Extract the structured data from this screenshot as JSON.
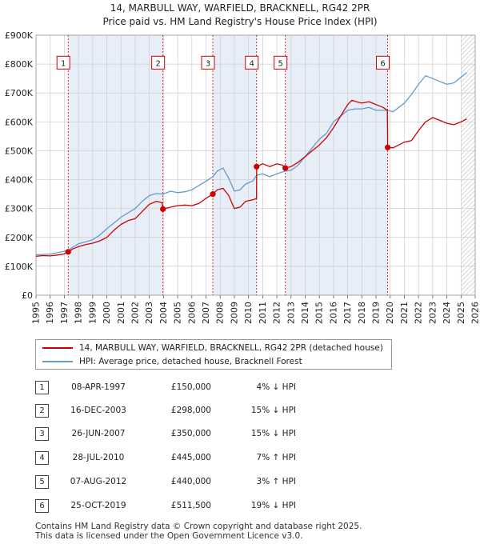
{
  "title": "14, MARBULL WAY, WARFIELD, BRACKNELL, RG42 2PR",
  "subtitle": "Price paid vs. HM Land Registry's House Price Index (HPI)",
  "colors": {
    "price_line": "#cc0000",
    "hpi_line": "#6699cc",
    "shade": "#e8eef8",
    "marker_line": "#cc0000",
    "grid": "#cccccc"
  },
  "chart_data": {
    "type": "line",
    "x_range": [
      1995,
      2026
    ],
    "ylim": [
      0,
      900000
    ],
    "y_ticks": [
      {
        "value": 0,
        "label": "£0"
      },
      {
        "value": 100000,
        "label": "£100K"
      },
      {
        "value": 200000,
        "label": "£200K"
      },
      {
        "value": 300000,
        "label": "£300K"
      },
      {
        "value": 400000,
        "label": "£400K"
      },
      {
        "value": 500000,
        "label": "£500K"
      },
      {
        "value": 600000,
        "label": "£600K"
      },
      {
        "value": 700000,
        "label": "£700K"
      },
      {
        "value": 800000,
        "label": "£800K"
      },
      {
        "value": 900000,
        "label": "£900K"
      }
    ],
    "x_ticks": [
      "1995",
      "1996",
      "1997",
      "1998",
      "1999",
      "2000",
      "2001",
      "2002",
      "2003",
      "2004",
      "2005",
      "2006",
      "2007",
      "2008",
      "2009",
      "2010",
      "2011",
      "2012",
      "2013",
      "2014",
      "2015",
      "2016",
      "2017",
      "2018",
      "2019",
      "2020",
      "2021",
      "2022",
      "2023",
      "2024",
      "2025",
      "2026"
    ],
    "shaded_ranges": [
      [
        1997.27,
        2003.96
      ],
      [
        2007.48,
        2010.57
      ],
      [
        2012.6,
        2019.82
      ]
    ],
    "hatch_from": 2025.0,
    "series": [
      {
        "name": "14, MARBULL WAY, WARFIELD, BRACKNELL, RG42 2PR (detached house)",
        "color": "#cc0000",
        "points": [
          [
            1995.0,
            135000
          ],
          [
            1995.5,
            137000
          ],
          [
            1996.0,
            136000
          ],
          [
            1996.5,
            139000
          ],
          [
            1997.0,
            143000
          ],
          [
            1997.27,
            150000
          ],
          [
            1997.6,
            160000
          ],
          [
            1998.0,
            168000
          ],
          [
            1998.5,
            175000
          ],
          [
            1999.0,
            180000
          ],
          [
            1999.5,
            188000
          ],
          [
            2000.0,
            200000
          ],
          [
            2000.5,
            225000
          ],
          [
            2001.0,
            245000
          ],
          [
            2001.5,
            258000
          ],
          [
            2002.0,
            265000
          ],
          [
            2002.5,
            290000
          ],
          [
            2003.0,
            315000
          ],
          [
            2003.5,
            325000
          ],
          [
            2003.9,
            320000
          ],
          [
            2003.96,
            298000
          ],
          [
            2004.5,
            305000
          ],
          [
            2005.0,
            310000
          ],
          [
            2005.5,
            312000
          ],
          [
            2006.0,
            310000
          ],
          [
            2006.5,
            318000
          ],
          [
            2007.0,
            335000
          ],
          [
            2007.48,
            350000
          ],
          [
            2007.8,
            365000
          ],
          [
            2008.2,
            370000
          ],
          [
            2008.6,
            345000
          ],
          [
            2009.0,
            300000
          ],
          [
            2009.4,
            305000
          ],
          [
            2009.8,
            325000
          ],
          [
            2010.3,
            330000
          ],
          [
            2010.57,
            335000
          ],
          [
            2010.58,
            445000
          ],
          [
            2011.0,
            455000
          ],
          [
            2011.5,
            445000
          ],
          [
            2012.0,
            455000
          ],
          [
            2012.4,
            450000
          ],
          [
            2012.6,
            440000
          ],
          [
            2013.0,
            445000
          ],
          [
            2013.5,
            460000
          ],
          [
            2014.0,
            480000
          ],
          [
            2014.5,
            500000
          ],
          [
            2015.0,
            520000
          ],
          [
            2015.5,
            545000
          ],
          [
            2016.0,
            580000
          ],
          [
            2016.5,
            620000
          ],
          [
            2017.0,
            660000
          ],
          [
            2017.3,
            675000
          ],
          [
            2017.6,
            670000
          ],
          [
            2018.0,
            665000
          ],
          [
            2018.5,
            670000
          ],
          [
            2019.0,
            660000
          ],
          [
            2019.5,
            650000
          ],
          [
            2019.8,
            640000
          ],
          [
            2019.82,
            511500
          ],
          [
            2020.2,
            510000
          ],
          [
            2020.6,
            520000
          ],
          [
            2021.0,
            530000
          ],
          [
            2021.5,
            535000
          ],
          [
            2022.0,
            570000
          ],
          [
            2022.5,
            600000
          ],
          [
            2023.0,
            615000
          ],
          [
            2023.5,
            605000
          ],
          [
            2024.0,
            595000
          ],
          [
            2024.5,
            590000
          ],
          [
            2025.0,
            600000
          ],
          [
            2025.4,
            610000
          ]
        ]
      },
      {
        "name": "HPI: Average price, detached house, Bracknell Forest",
        "color": "#6699cc",
        "points": [
          [
            1995.0,
            140000
          ],
          [
            1995.5,
            141000
          ],
          [
            1996.0,
            142000
          ],
          [
            1996.5,
            147000
          ],
          [
            1997.0,
            152000
          ],
          [
            1997.27,
            156000
          ],
          [
            1997.6,
            166000
          ],
          [
            1998.0,
            178000
          ],
          [
            1998.5,
            185000
          ],
          [
            1999.0,
            192000
          ],
          [
            1999.5,
            208000
          ],
          [
            2000.0,
            230000
          ],
          [
            2000.5,
            250000
          ],
          [
            2001.0,
            270000
          ],
          [
            2001.5,
            285000
          ],
          [
            2002.0,
            300000
          ],
          [
            2002.5,
            325000
          ],
          [
            2003.0,
            345000
          ],
          [
            2003.5,
            352000
          ],
          [
            2003.96,
            350000
          ],
          [
            2004.5,
            360000
          ],
          [
            2005.0,
            355000
          ],
          [
            2005.5,
            358000
          ],
          [
            2006.0,
            365000
          ],
          [
            2006.5,
            380000
          ],
          [
            2007.0,
            395000
          ],
          [
            2007.48,
            410000
          ],
          [
            2007.8,
            430000
          ],
          [
            2008.2,
            440000
          ],
          [
            2008.6,
            405000
          ],
          [
            2009.0,
            360000
          ],
          [
            2009.4,
            365000
          ],
          [
            2009.8,
            385000
          ],
          [
            2010.3,
            395000
          ],
          [
            2010.57,
            415000
          ],
          [
            2011.0,
            420000
          ],
          [
            2011.5,
            410000
          ],
          [
            2012.0,
            420000
          ],
          [
            2012.6,
            430000
          ],
          [
            2013.0,
            432000
          ],
          [
            2013.5,
            450000
          ],
          [
            2014.0,
            480000
          ],
          [
            2014.5,
            510000
          ],
          [
            2015.0,
            540000
          ],
          [
            2015.5,
            560000
          ],
          [
            2016.0,
            600000
          ],
          [
            2016.5,
            620000
          ],
          [
            2017.0,
            640000
          ],
          [
            2017.5,
            645000
          ],
          [
            2018.0,
            645000
          ],
          [
            2018.5,
            650000
          ],
          [
            2019.0,
            640000
          ],
          [
            2019.5,
            640000
          ],
          [
            2019.82,
            640000
          ],
          [
            2020.2,
            635000
          ],
          [
            2020.6,
            650000
          ],
          [
            2021.0,
            665000
          ],
          [
            2021.5,
            695000
          ],
          [
            2022.0,
            730000
          ],
          [
            2022.5,
            760000
          ],
          [
            2023.0,
            750000
          ],
          [
            2023.5,
            740000
          ],
          [
            2024.0,
            730000
          ],
          [
            2024.5,
            735000
          ],
          [
            2025.0,
            755000
          ],
          [
            2025.4,
            770000
          ]
        ]
      }
    ],
    "transactions": [
      {
        "num": "1",
        "date": "08-APR-1997",
        "price": "£150,000",
        "hpi": "4% ↓ HPI",
        "x": 1997.27,
        "y": 150000
      },
      {
        "num": "2",
        "date": "16-DEC-2003",
        "price": "£298,000",
        "hpi": "15% ↓ HPI",
        "x": 2003.96,
        "y": 298000
      },
      {
        "num": "3",
        "date": "26-JUN-2007",
        "price": "£350,000",
        "hpi": "15% ↓ HPI",
        "x": 2007.48,
        "y": 350000
      },
      {
        "num": "4",
        "date": "28-JUL-2010",
        "price": "£445,000",
        "hpi": "7% ↑ HPI",
        "x": 2010.57,
        "y": 445000
      },
      {
        "num": "5",
        "date": "07-AUG-2012",
        "price": "£440,000",
        "hpi": "3% ↑ HPI",
        "x": 2012.6,
        "y": 440000
      },
      {
        "num": "6",
        "date": "25-OCT-2019",
        "price": "£511,500",
        "hpi": "19% ↓ HPI",
        "x": 2019.82,
        "y": 511500
      }
    ]
  },
  "legend": {
    "red_label": "14, MARBULL WAY, WARFIELD, BRACKNELL, RG42 2PR (detached house)",
    "blue_label": "HPI: Average price, detached house, Bracknell Forest"
  },
  "footer": {
    "line1": "Contains HM Land Registry data © Crown copyright and database right 2025.",
    "line2": "This data is licensed under the Open Government Licence v3.0."
  }
}
